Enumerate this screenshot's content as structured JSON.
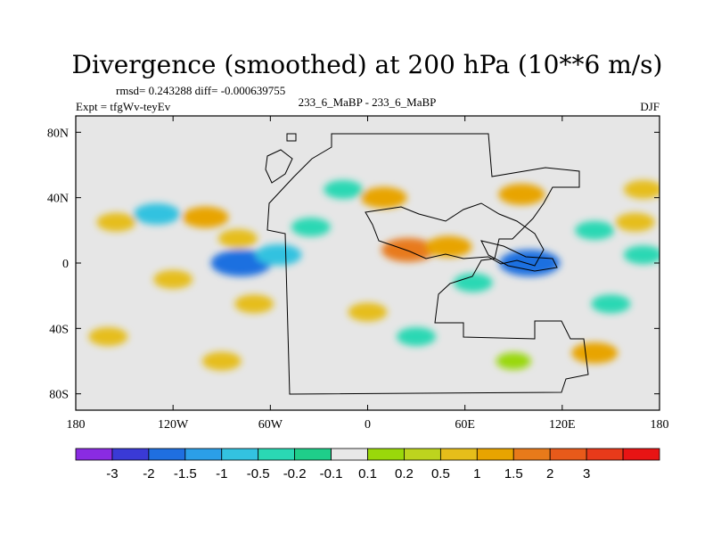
{
  "chart_data": {
    "type": "heatmap",
    "title": "Divergence (smoothed) at 200 hPa (10**6 m/s)",
    "stats_line": "rmsd= 0.243288 diff= -0.000639755",
    "left_label": "Expt = tfgWv-teyEv",
    "center_label": "233_6_MaBP - 233_6_MaBP",
    "right_label": "DJF",
    "xlim": [
      -180,
      180
    ],
    "ylim": [
      -90,
      90
    ],
    "x_ticks": [
      {
        "value": -180,
        "label": "180"
      },
      {
        "value": -120,
        "label": "120W"
      },
      {
        "value": -60,
        "label": "60W"
      },
      {
        "value": 0,
        "label": "0"
      },
      {
        "value": 60,
        "label": "60E"
      },
      {
        "value": 120,
        "label": "120E"
      },
      {
        "value": 180,
        "label": "180"
      }
    ],
    "y_ticks": [
      {
        "value": 80,
        "label": "80N"
      },
      {
        "value": 40,
        "label": "40N"
      },
      {
        "value": 0,
        "label": "0"
      },
      {
        "value": -40,
        "label": "40S"
      },
      {
        "value": -80,
        "label": "80S"
      }
    ],
    "background_color": "#e6e6e6",
    "colorbar": {
      "colors": [
        "#8a2be2",
        "#3a3ad6",
        "#1f6fe0",
        "#2b9fe8",
        "#33c2e0",
        "#2ad8b4",
        "#1fce8a",
        "#e8e8e8",
        "#9ad80a",
        "#bdd41e",
        "#e6be1a",
        "#e8a400",
        "#e87a1a",
        "#e85a1a",
        "#e83a1a",
        "#e81414"
      ],
      "labels": [
        "-3",
        "-2",
        "-1.5",
        "-1",
        "-0.5",
        "-0.2",
        "-0.1",
        "0.1",
        "0.2",
        "0.5",
        "1",
        "1.5",
        "2",
        "3"
      ]
    },
    "features": [
      {
        "lon": -130,
        "lat": 30,
        "level": -1
      },
      {
        "lon": -155,
        "lat": 25,
        "level": 0.5
      },
      {
        "lon": -100,
        "lat": 28,
        "level": 1
      },
      {
        "lon": -80,
        "lat": 15,
        "level": 0.5
      },
      {
        "lon": -78,
        "lat": 0,
        "level": -2
      },
      {
        "lon": -55,
        "lat": 5,
        "level": -1
      },
      {
        "lon": -35,
        "lat": 22,
        "level": -0.5
      },
      {
        "lon": -15,
        "lat": 45,
        "level": -0.5
      },
      {
        "lon": 10,
        "lat": 40,
        "level": 1
      },
      {
        "lon": 25,
        "lat": 8,
        "level": 1.5
      },
      {
        "lon": 50,
        "lat": 10,
        "level": 1
      },
      {
        "lon": 65,
        "lat": -12,
        "level": -0.5
      },
      {
        "lon": 95,
        "lat": 42,
        "level": 1
      },
      {
        "lon": 100,
        "lat": 0,
        "level": -2
      },
      {
        "lon": 140,
        "lat": 20,
        "level": -0.5
      },
      {
        "lon": 165,
        "lat": 25,
        "level": 0.5
      },
      {
        "lon": 170,
        "lat": 45,
        "level": 0.5
      },
      {
        "lon": -120,
        "lat": -10,
        "level": 0.5
      },
      {
        "lon": -70,
        "lat": -25,
        "level": 0.5
      },
      {
        "lon": 0,
        "lat": -30,
        "level": 0.5
      },
      {
        "lon": 30,
        "lat": -45,
        "level": -0.5
      },
      {
        "lon": 140,
        "lat": -55,
        "level": 1
      },
      {
        "lon": 150,
        "lat": -25,
        "level": -0.5
      },
      {
        "lon": -160,
        "lat": -45,
        "level": 0.5
      },
      {
        "lon": -90,
        "lat": -60,
        "level": 0.5
      },
      {
        "lon": 90,
        "lat": -60,
        "level": 0.2
      },
      {
        "lon": 170,
        "lat": 5,
        "level": -0.5
      }
    ]
  }
}
